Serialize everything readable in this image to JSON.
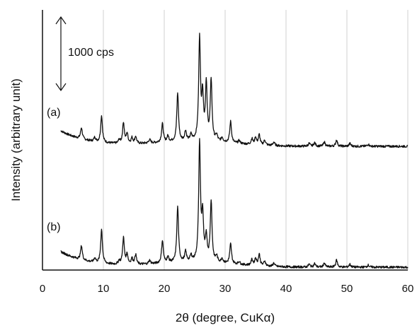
{
  "chart_data": {
    "type": "line",
    "title": "",
    "xlabel": "2θ (degree, CuKα)",
    "ylabel": "Intensity (arbitrary unit)",
    "xlim": [
      0,
      60
    ],
    "xticks": [
      "0",
      "10",
      "20",
      "30",
      "40",
      "50",
      "60"
    ],
    "grid": "vertical",
    "scale_bar_label": "1000 cps",
    "colors": {
      "line": "#111111",
      "grid": "#d0d0d0",
      "axis": "#111111"
    },
    "series": [
      {
        "name": "(a)",
        "peaks": [
          {
            "x": 6.4,
            "y": 16
          },
          {
            "x": 8.6,
            "y": 6
          },
          {
            "x": 9.7,
            "y": 38
          },
          {
            "x": 12.6,
            "y": 5
          },
          {
            "x": 13.3,
            "y": 30
          },
          {
            "x": 13.9,
            "y": 14
          },
          {
            "x": 14.7,
            "y": 8
          },
          {
            "x": 15.3,
            "y": 10
          },
          {
            "x": 17.6,
            "y": 5
          },
          {
            "x": 19.7,
            "y": 26
          },
          {
            "x": 20.6,
            "y": 8
          },
          {
            "x": 22.2,
            "y": 68
          },
          {
            "x": 23.5,
            "y": 14
          },
          {
            "x": 24.4,
            "y": 8
          },
          {
            "x": 25.8,
            "y": 145
          },
          {
            "x": 26.3,
            "y": 60
          },
          {
            "x": 26.9,
            "y": 78
          },
          {
            "x": 27.7,
            "y": 86
          },
          {
            "x": 28.6,
            "y": 8
          },
          {
            "x": 29.5,
            "y": 6
          },
          {
            "x": 30.9,
            "y": 30
          },
          {
            "x": 32.3,
            "y": 4
          },
          {
            "x": 34.4,
            "y": 8
          },
          {
            "x": 35.0,
            "y": 10
          },
          {
            "x": 35.6,
            "y": 14
          },
          {
            "x": 36.5,
            "y": 7
          },
          {
            "x": 38.0,
            "y": 5
          },
          {
            "x": 43.8,
            "y": 4
          },
          {
            "x": 44.7,
            "y": 5
          },
          {
            "x": 46.3,
            "y": 6
          },
          {
            "x": 48.3,
            "y": 9
          },
          {
            "x": 50.5,
            "y": 4
          },
          {
            "x": 53.5,
            "y": 3
          }
        ]
      },
      {
        "name": "(b)",
        "peaks": [
          {
            "x": 6.4,
            "y": 20
          },
          {
            "x": 8.6,
            "y": 6
          },
          {
            "x": 9.7,
            "y": 48
          },
          {
            "x": 12.6,
            "y": 5
          },
          {
            "x": 13.3,
            "y": 38
          },
          {
            "x": 13.9,
            "y": 14
          },
          {
            "x": 14.7,
            "y": 8
          },
          {
            "x": 15.3,
            "y": 14
          },
          {
            "x": 17.6,
            "y": 5
          },
          {
            "x": 19.7,
            "y": 32
          },
          {
            "x": 20.6,
            "y": 8
          },
          {
            "x": 22.2,
            "y": 78
          },
          {
            "x": 23.5,
            "y": 14
          },
          {
            "x": 24.4,
            "y": 8
          },
          {
            "x": 25.8,
            "y": 168
          },
          {
            "x": 26.3,
            "y": 62
          },
          {
            "x": 26.9,
            "y": 34
          },
          {
            "x": 27.7,
            "y": 86
          },
          {
            "x": 28.6,
            "y": 8
          },
          {
            "x": 29.5,
            "y": 6
          },
          {
            "x": 30.9,
            "y": 28
          },
          {
            "x": 32.3,
            "y": 4
          },
          {
            "x": 34.4,
            "y": 8
          },
          {
            "x": 35.0,
            "y": 10
          },
          {
            "x": 35.6,
            "y": 16
          },
          {
            "x": 36.5,
            "y": 7
          },
          {
            "x": 38.0,
            "y": 5
          },
          {
            "x": 43.8,
            "y": 4
          },
          {
            "x": 44.7,
            "y": 5
          },
          {
            "x": 46.3,
            "y": 6
          },
          {
            "x": 48.3,
            "y": 10
          },
          {
            "x": 50.5,
            "y": 4
          },
          {
            "x": 53.5,
            "y": 3
          }
        ]
      }
    ]
  }
}
